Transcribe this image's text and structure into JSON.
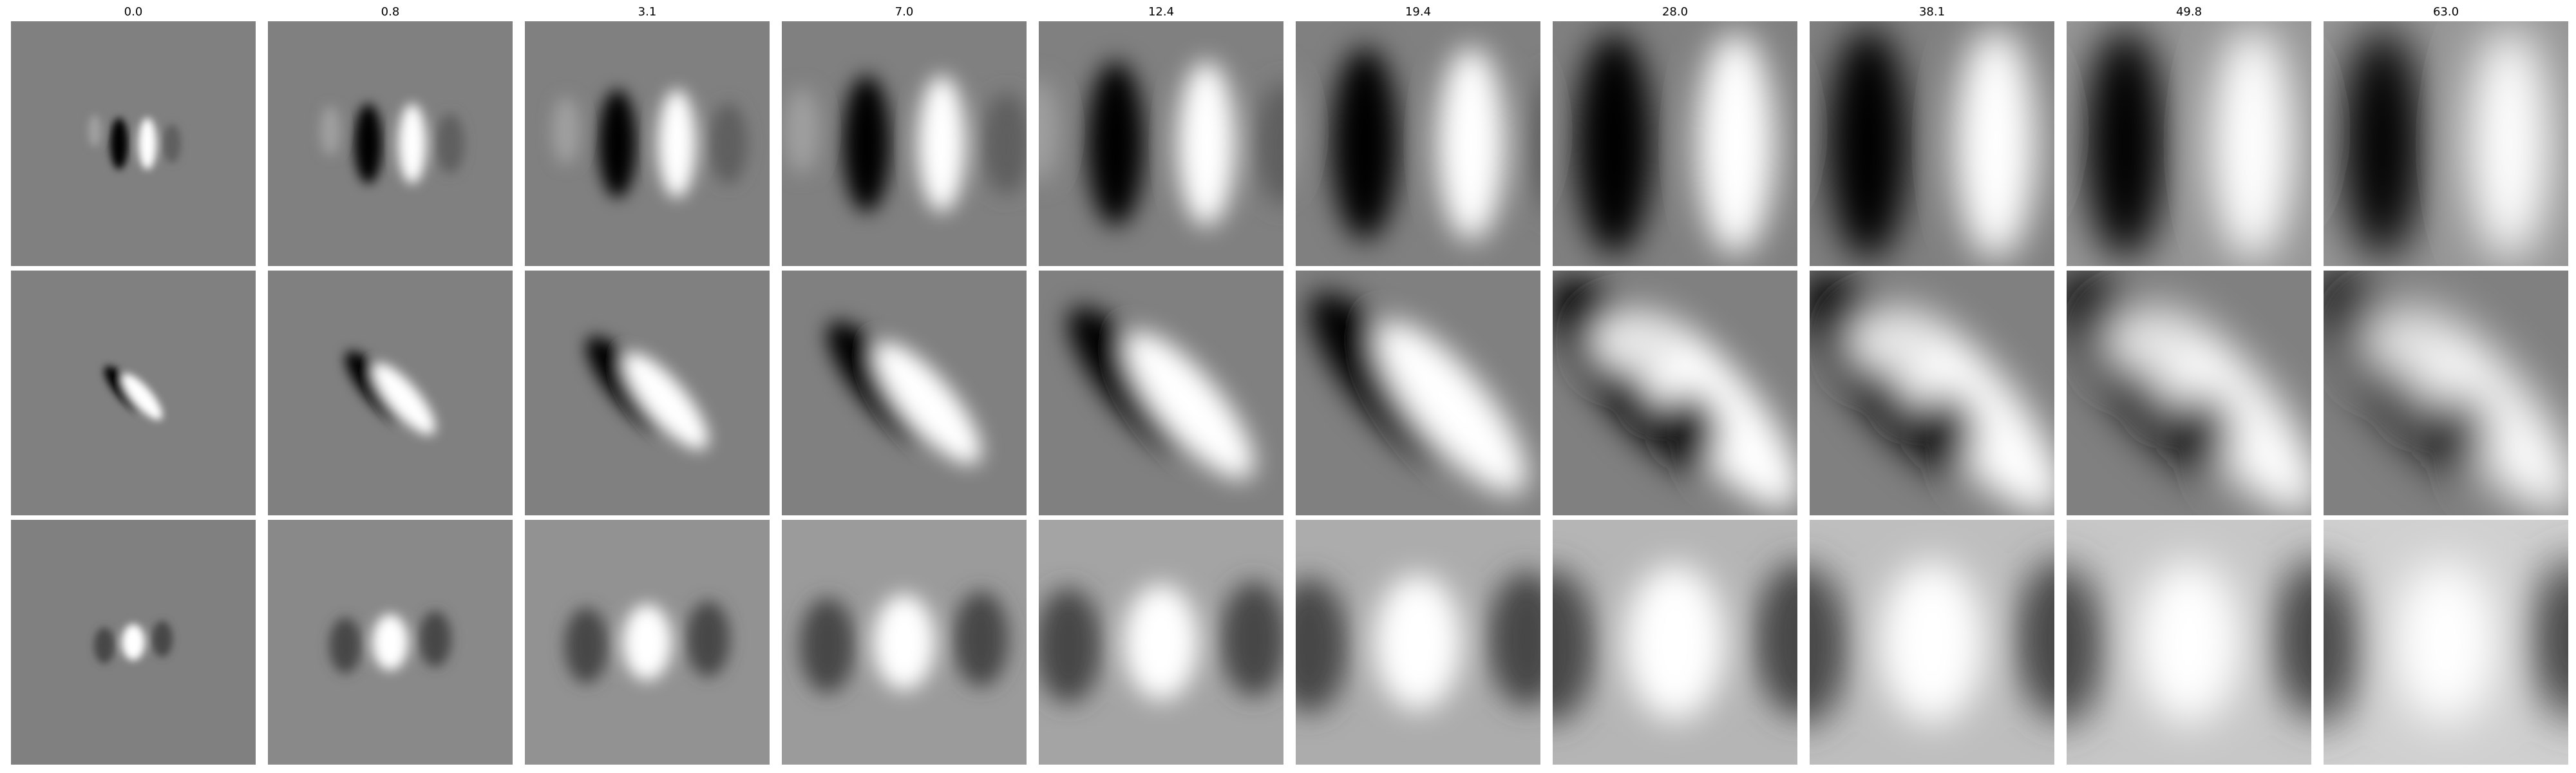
{
  "figure": {
    "column_titles": [
      "0.0",
      "0.8",
      "3.1",
      "7.0",
      "12.4",
      "19.4",
      "28.0",
      "38.1",
      "49.8",
      "63.0"
    ],
    "rows": 3,
    "colormap": "grayscale",
    "colors": {
      "background": "#ffffff",
      "neutral": "#808080",
      "dark": "#000000",
      "light": "#ffffff"
    }
  }
}
